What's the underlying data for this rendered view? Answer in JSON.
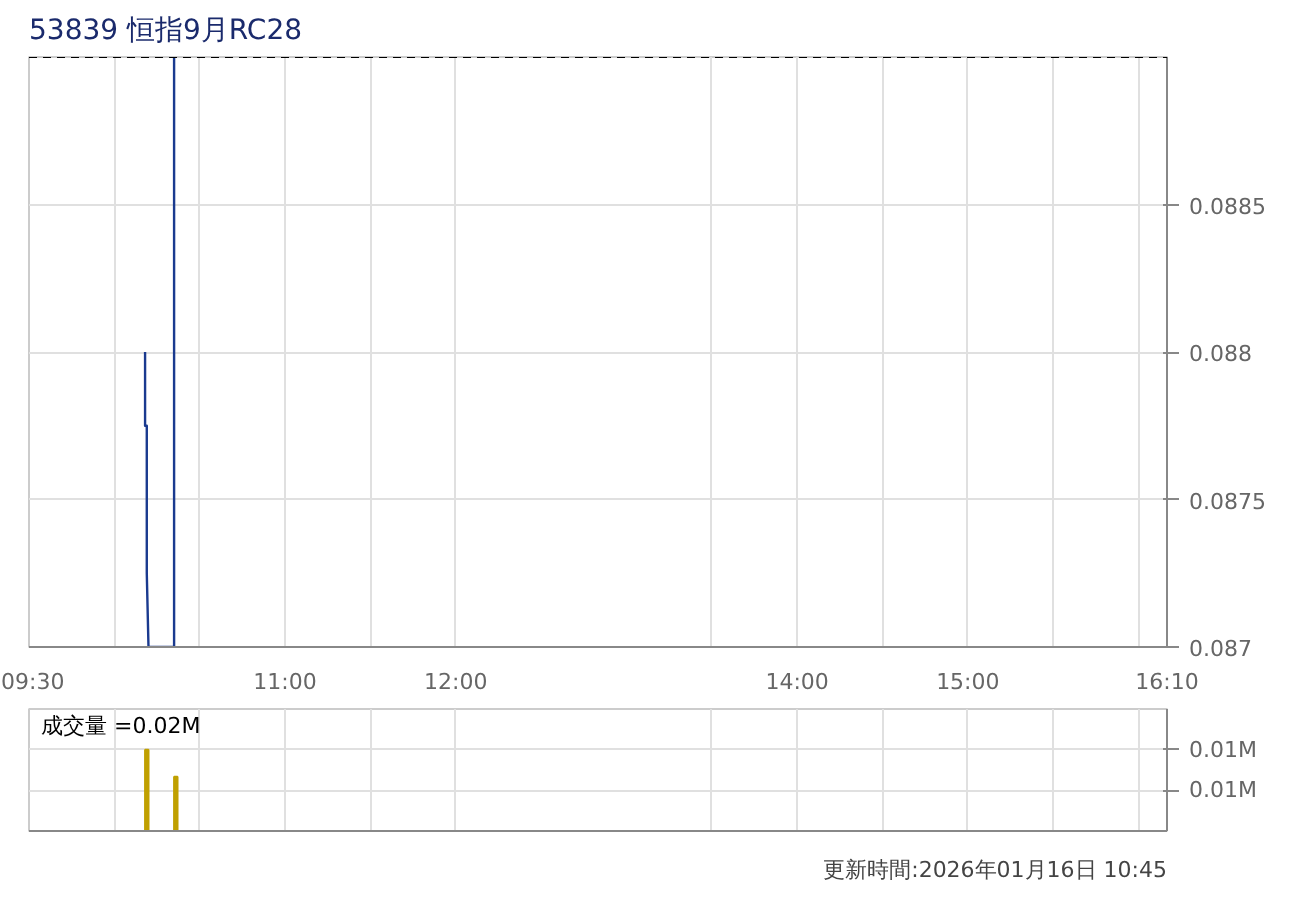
{
  "chart_data": [
    {
      "type": "line",
      "title": "53839 恒指9月RC28",
      "x": [
        10.18,
        10.18,
        10.19,
        10.19,
        10.2,
        10.35,
        10.35
      ],
      "series": [
        {
          "color": "#1a3a8f",
          "values": [
            0.088,
            0.08775,
            0.08775,
            0.08725,
            0.087,
            0.087,
            0.089
          ]
        }
      ],
      "xlim": [
        9.5,
        16.1667
      ],
      "xticks": [
        {
          "value": 9.5,
          "label": "09:30"
        },
        {
          "value": 10,
          "label": null
        },
        {
          "value": 10.5,
          "label": null
        },
        {
          "value": 11,
          "label": "11:00"
        },
        {
          "value": 11.5,
          "label": null
        },
        {
          "value": 12,
          "label": "12:00"
        },
        {
          "value": 13.5,
          "label": null
        },
        {
          "value": 14,
          "label": "14:00"
        },
        {
          "value": 14.5,
          "label": null
        },
        {
          "value": 15,
          "label": "15:00"
        },
        {
          "value": 15.5,
          "label": null
        },
        {
          "value": 16,
          "label": null
        },
        {
          "value": 16.1667,
          "label": "16:10"
        }
      ],
      "ylim": [
        0.087,
        0.089
      ],
      "yticks": [
        0.087,
        0.0875,
        0.088,
        0.0885
      ],
      "ref_lines": [
        {
          "axis": "y",
          "value": 0.089,
          "color": "#000000",
          "line_style": "dashed"
        }
      ],
      "grid": true
    },
    {
      "type": "bar",
      "x": [
        10.19,
        10.36
      ],
      "series": [
        {
          "color": "#c0a000",
          "values": [
            0.012,
            0.008
          ]
        }
      ],
      "xlim": [
        9.5,
        16.1667
      ],
      "xticks": [
        {
          "value": 9.5,
          "label": null
        },
        {
          "value": 10,
          "label": null
        },
        {
          "value": 10.5,
          "label": null
        },
        {
          "value": 11,
          "label": null
        },
        {
          "value": 11.5,
          "label": null
        },
        {
          "value": 12,
          "label": null
        },
        {
          "value": 13.5,
          "label": null
        },
        {
          "value": 14,
          "label": null
        },
        {
          "value": 14.5,
          "label": null
        },
        {
          "value": 15,
          "label": null
        },
        {
          "value": 15.5,
          "label": null
        },
        {
          "value": 16,
          "label": null
        },
        {
          "value": 16.1667,
          "label": null
        }
      ],
      "ylim": [
        0,
        0.018
      ],
      "yticks": [
        {
          "value": 0.006,
          "label": "0.01M"
        },
        {
          "value": 0.012,
          "label": "0.01M"
        }
      ],
      "tick_labels": "y",
      "grid": true,
      "annotations": [
        "成交量 =0.02M",
        "更新時間:2026年01月16日 10:45"
      ]
    }
  ]
}
